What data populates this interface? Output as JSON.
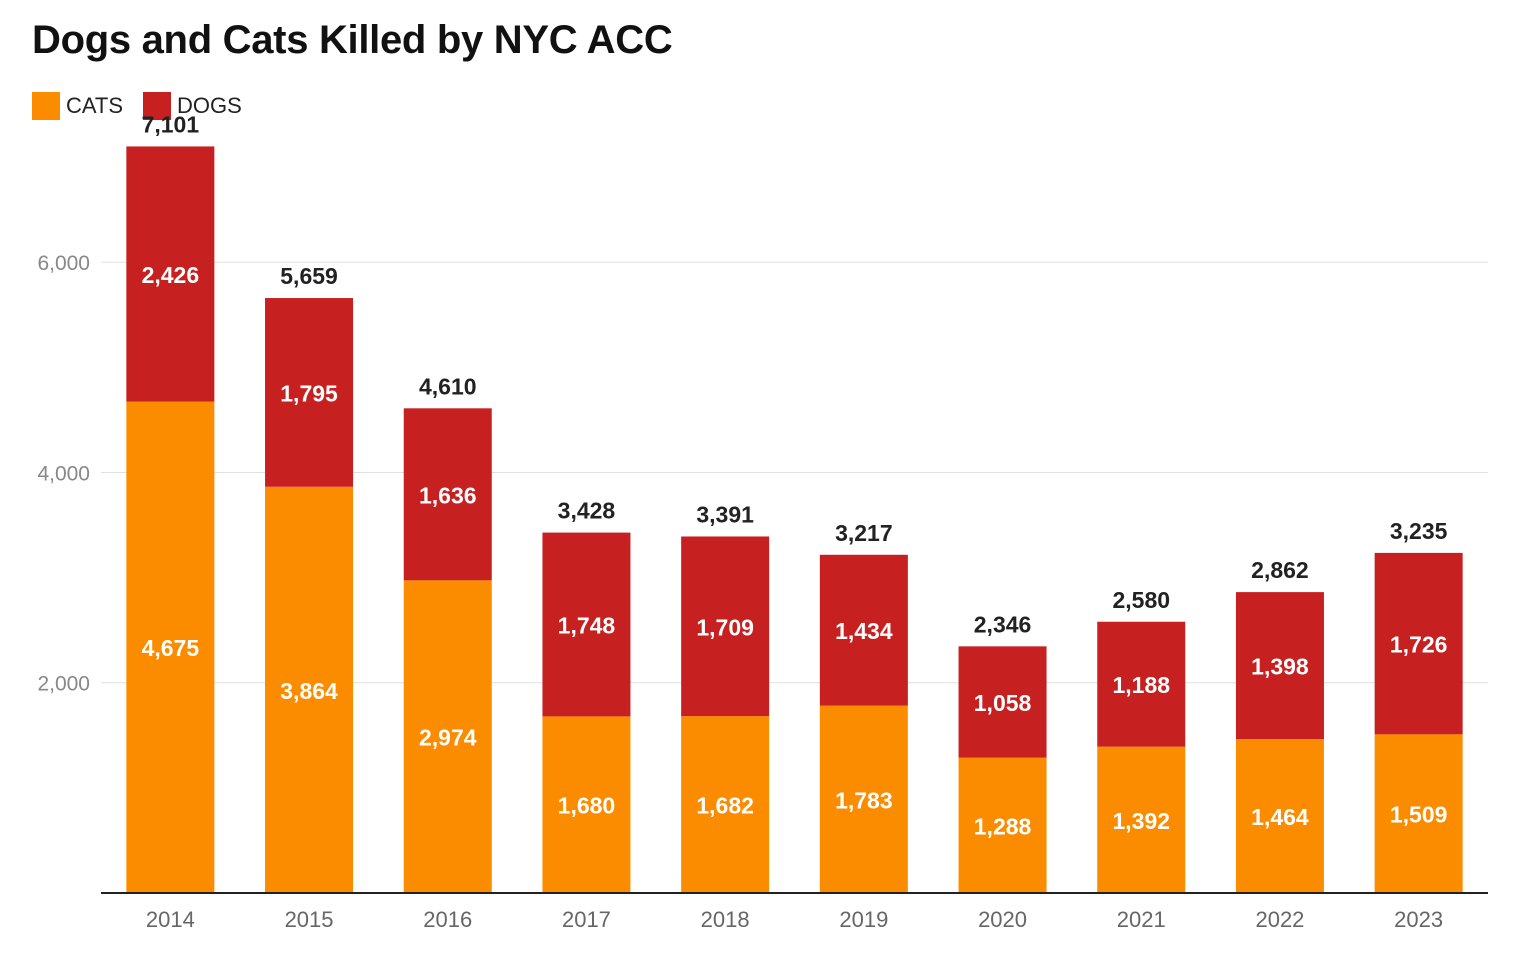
{
  "chart_data": {
    "type": "bar",
    "stacked": true,
    "title": "Dogs and Cats Killed by NYC ACC",
    "xlabel": "",
    "ylabel": "",
    "categories": [
      "2014",
      "2015",
      "2016",
      "2017",
      "2018",
      "2019",
      "2020",
      "2021",
      "2022",
      "2023"
    ],
    "series": [
      {
        "name": "CATS",
        "color": "#FB8C00",
        "values": [
          4675,
          3864,
          2974,
          1680,
          1682,
          1783,
          1288,
          1392,
          1464,
          1509
        ],
        "labels": [
          "4,675",
          "3,864",
          "2,974",
          "1,680",
          "1,682",
          "1,783",
          "1,288",
          "1,392",
          "1,464",
          "1,509"
        ]
      },
      {
        "name": "DOGS",
        "color": "#C62020",
        "values": [
          2426,
          1795,
          1636,
          1748,
          1709,
          1434,
          1058,
          1188,
          1398,
          1726
        ],
        "labels": [
          "2,426",
          "1,795",
          "1,636",
          "1,748",
          "1,709",
          "1,434",
          "1,058",
          "1,188",
          "1,398",
          "1,726"
        ]
      }
    ],
    "totals": [
      7101,
      5659,
      4610,
      3428,
      3391,
      3217,
      2346,
      2580,
      2862,
      3235
    ],
    "total_labels": [
      "7,101",
      "5,659",
      "4,610",
      "3,428",
      "3,391",
      "3,217",
      "2,346",
      "2,580",
      "2,862",
      "3,235"
    ],
    "yticks": [
      2000,
      4000,
      6000
    ],
    "ytick_labels": [
      "2,000",
      "4,000",
      "6,000"
    ],
    "ylim": [
      0,
      7400
    ],
    "grid": true,
    "legend_position": "top-left"
  }
}
